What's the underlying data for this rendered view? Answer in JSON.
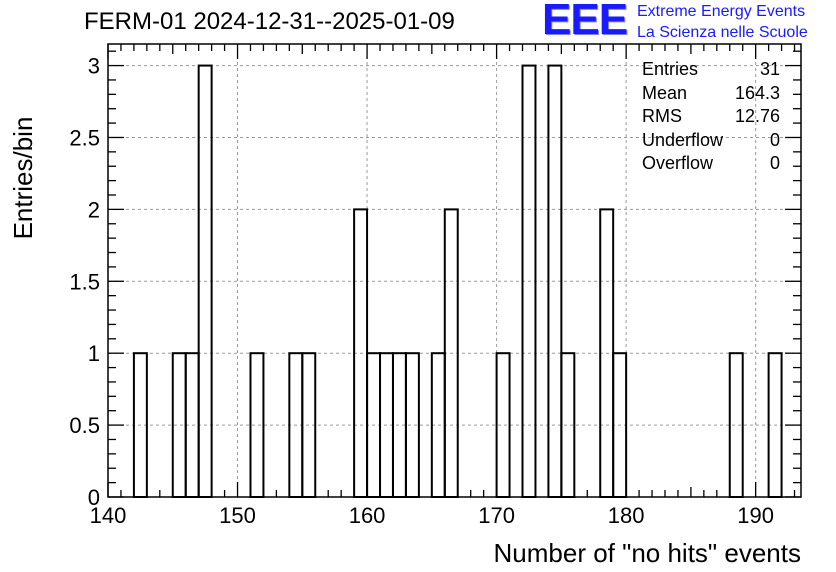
{
  "chart_data": {
    "type": "histogram",
    "title": "FERM-01 2024-12-31--2025-01-09",
    "xlabel": "Number of \"no hits\" events",
    "ylabel": "Entries/bin",
    "xlim": [
      140,
      193.5
    ],
    "ylim": [
      0,
      3.15
    ],
    "bin_width": 1,
    "grid": true,
    "x_ticks": [
      "140",
      "150",
      "160",
      "170",
      "180",
      "190"
    ],
    "y_ticks": [
      "0",
      "0.5",
      "1",
      "1.5",
      "2",
      "2.5",
      "3"
    ],
    "bins": [
      {
        "x": 142,
        "count": 1
      },
      {
        "x": 145,
        "count": 1
      },
      {
        "x": 146,
        "count": 1
      },
      {
        "x": 147,
        "count": 3
      },
      {
        "x": 151,
        "count": 1
      },
      {
        "x": 154,
        "count": 1
      },
      {
        "x": 155,
        "count": 1
      },
      {
        "x": 159,
        "count": 2
      },
      {
        "x": 160,
        "count": 1
      },
      {
        "x": 161,
        "count": 1
      },
      {
        "x": 162,
        "count": 1
      },
      {
        "x": 163,
        "count": 1
      },
      {
        "x": 165,
        "count": 1
      },
      {
        "x": 166,
        "count": 2
      },
      {
        "x": 170,
        "count": 1
      },
      {
        "x": 172,
        "count": 3
      },
      {
        "x": 174,
        "count": 3
      },
      {
        "x": 175,
        "count": 1
      },
      {
        "x": 178,
        "count": 2
      },
      {
        "x": 179,
        "count": 1
      },
      {
        "x": 188,
        "count": 1
      },
      {
        "x": 191,
        "count": 1
      }
    ],
    "stats": [
      {
        "label": "Entries",
        "value": "31"
      },
      {
        "label": "Mean",
        "value": "164.3"
      },
      {
        "label": "RMS",
        "value": "12.76"
      },
      {
        "label": "Underflow",
        "value": "0"
      },
      {
        "label": "Overflow",
        "value": "0"
      }
    ]
  },
  "logo": {
    "mark": "EEE",
    "line1": "Extreme Energy Events",
    "line2": "La Scienza nelle Scuole",
    "color": "#1a1aff"
  }
}
